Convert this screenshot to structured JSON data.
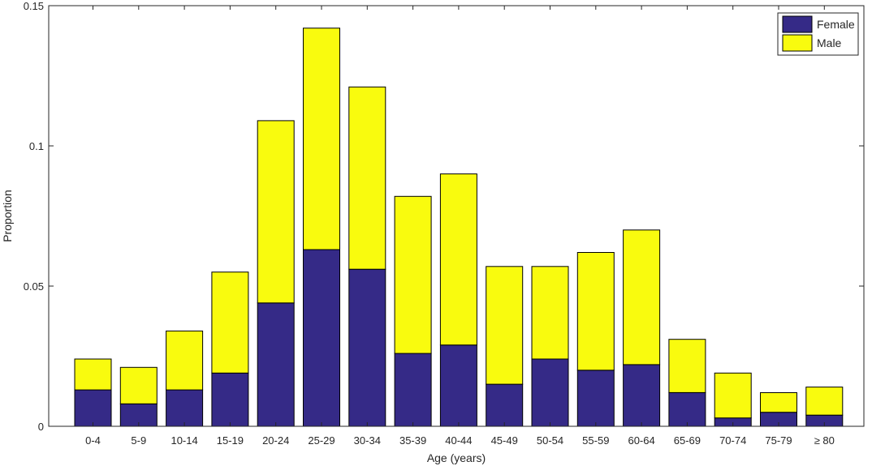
{
  "chart_data": {
    "type": "bar",
    "stacked": true,
    "title": "",
    "xlabel": "Age (years)",
    "ylabel": "Proportion",
    "ylim": [
      0,
      0.15
    ],
    "yticks": [
      0,
      0.05,
      0.1,
      0.15
    ],
    "ytick_labels": [
      "0",
      "0.05",
      "0.1",
      "0.15"
    ],
    "categories": [
      "0-4",
      "5-9",
      "10-14",
      "15-19",
      "20-24",
      "25-29",
      "30-34",
      "35-39",
      "40-44",
      "45-49",
      "50-54",
      "55-59",
      "60-64",
      "65-69",
      "70-74",
      "75-79",
      "≥ 80"
    ],
    "series": [
      {
        "name": "Female",
        "color": "#352a87",
        "values": [
          0.013,
          0.008,
          0.013,
          0.019,
          0.044,
          0.063,
          0.056,
          0.026,
          0.029,
          0.015,
          0.024,
          0.02,
          0.022,
          0.012,
          0.003,
          0.005,
          0.004
        ]
      },
      {
        "name": "Male",
        "color": "#f9fb0e",
        "values": [
          0.011,
          0.013,
          0.021,
          0.036,
          0.065,
          0.079,
          0.065,
          0.056,
          0.061,
          0.042,
          0.033,
          0.042,
          0.048,
          0.019,
          0.016,
          0.007,
          0.01
        ]
      }
    ],
    "grid": false,
    "box": true,
    "legend": "top-right"
  }
}
